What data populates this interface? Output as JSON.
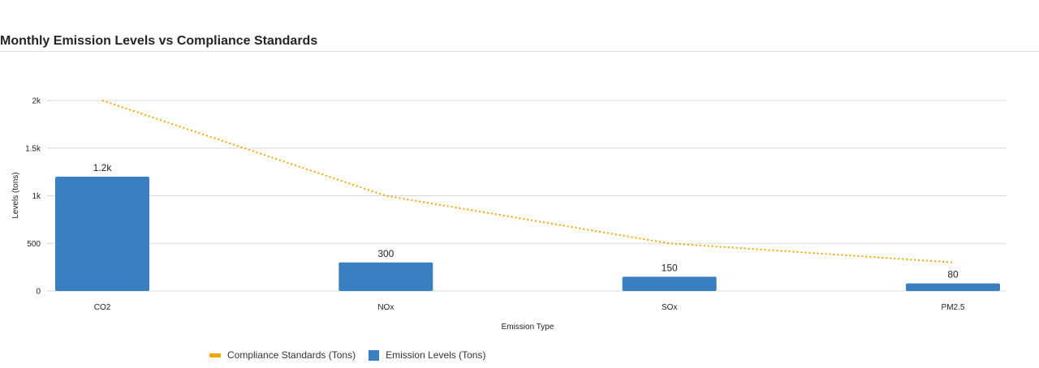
{
  "title": "Monthly Emission Levels vs Compliance Standards",
  "colors": {
    "bar": "#3a80c1",
    "line": "#f5a500",
    "grid": "#d9d9d9"
  },
  "chart_data": {
    "type": "bar",
    "categories": [
      "CO2",
      "NOx",
      "SOx",
      "PM2.5"
    ],
    "series": [
      {
        "name": "Emission Levels (Tons)",
        "type": "bar",
        "values": [
          1200,
          300,
          150,
          80
        ],
        "labels": [
          "1.2k",
          "300",
          "150",
          "80"
        ]
      },
      {
        "name": "Compliance Standards (Tons)",
        "type": "line",
        "style": "dotted",
        "values": [
          2000,
          1000,
          500,
          300
        ]
      }
    ],
    "xlabel": "Emission Type",
    "ylabel": "Levels (tons)",
    "ylim": [
      0,
      2000
    ],
    "yticks": [
      0,
      500,
      1000,
      1500,
      2000
    ],
    "ytick_labels": [
      "0",
      "500",
      "1k",
      "1.5k",
      "2k"
    ],
    "grid": true,
    "legend_position": "bottom-left"
  },
  "legend": [
    {
      "label": "Compliance Standards (Tons)",
      "kind": "line"
    },
    {
      "label": "Emission Levels (Tons)",
      "kind": "bar"
    }
  ]
}
